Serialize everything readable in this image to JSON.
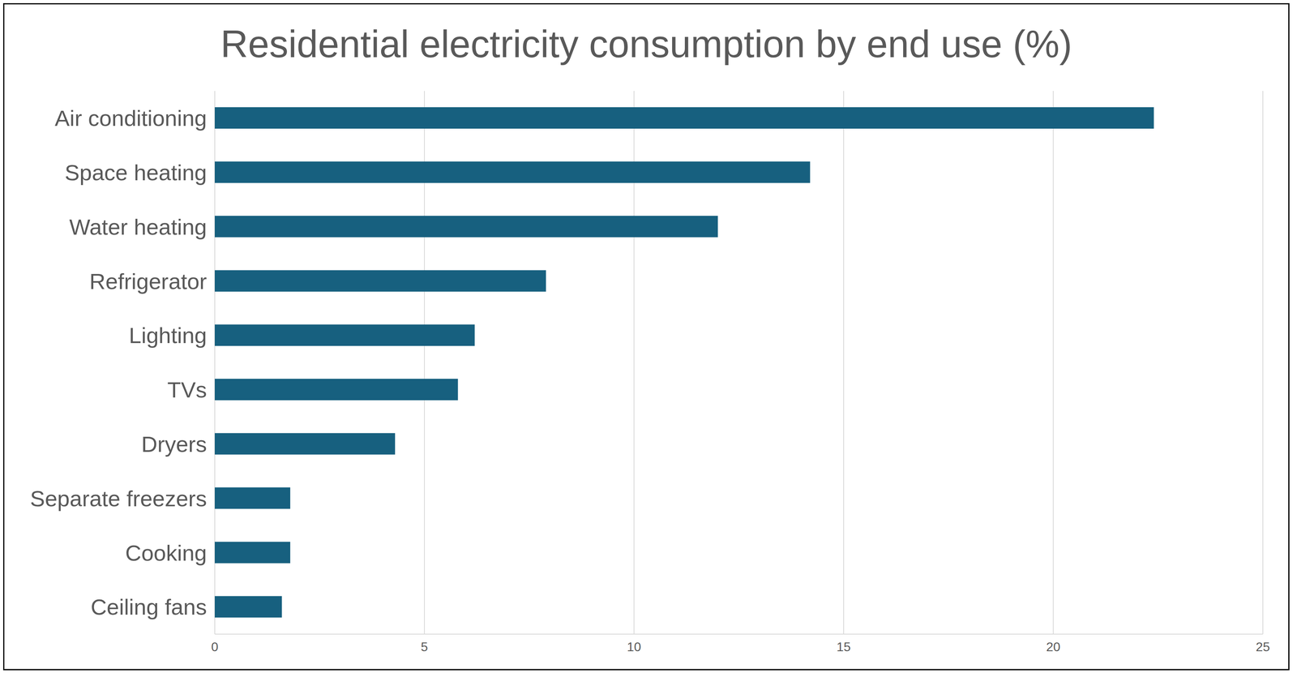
{
  "chart_data": {
    "type": "bar",
    "title": "Residential electricity consumption by end use (%)",
    "orientation": "horizontal",
    "categories": [
      "Air conditioning",
      "Space heating",
      "Water heating",
      "Refrigerator",
      "Lighting",
      "TVs",
      "Dryers",
      "Separate freezers",
      "Cooking",
      "Ceiling fans"
    ],
    "values": [
      22.4,
      14.2,
      12.0,
      7.9,
      6.2,
      5.8,
      4.3,
      1.8,
      1.8,
      1.6
    ],
    "color": "#17607f",
    "xlim": [
      0,
      25
    ],
    "xticks": [
      0,
      5,
      10,
      15,
      20,
      25
    ],
    "grid": true
  }
}
